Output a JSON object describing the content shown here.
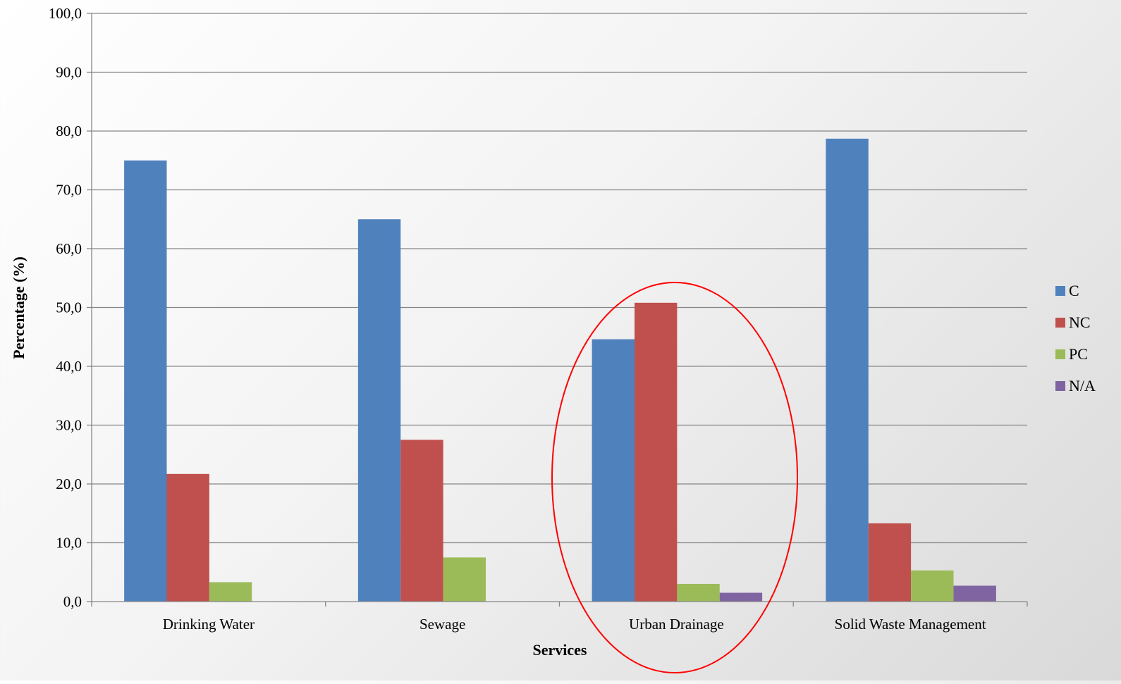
{
  "chart_data": {
    "type": "bar",
    "categories": [
      "Drinking Water",
      "Sewage",
      "Urban Drainage",
      "Solid Waste Management"
    ],
    "series": [
      {
        "name": "C",
        "color": "#4F81BD",
        "values": [
          75.0,
          65.0,
          44.6,
          78.7
        ]
      },
      {
        "name": "NC",
        "color": "#C0504D",
        "values": [
          21.7,
          27.5,
          50.8,
          13.3
        ]
      },
      {
        "name": "PC",
        "color": "#9BBB59",
        "values": [
          3.3,
          7.5,
          3.0,
          5.3
        ]
      },
      {
        "name": "N/A",
        "color": "#8064A2",
        "values": [
          0.0,
          0.0,
          1.5,
          2.7
        ]
      }
    ],
    "xlabel": "Services",
    "ylabel": "Percentage (%)",
    "ylim": [
      0,
      100
    ],
    "yticks": [
      "0,0",
      "10,0",
      "20,0",
      "30,0",
      "40,0",
      "50,0",
      "60,0",
      "70,0",
      "80,0",
      "90,0",
      "100,0"
    ],
    "grid": true,
    "legend_position": "right",
    "highlight": {
      "category": "Urban Drainage",
      "shape": "ellipse",
      "color": "#FF0000"
    }
  }
}
